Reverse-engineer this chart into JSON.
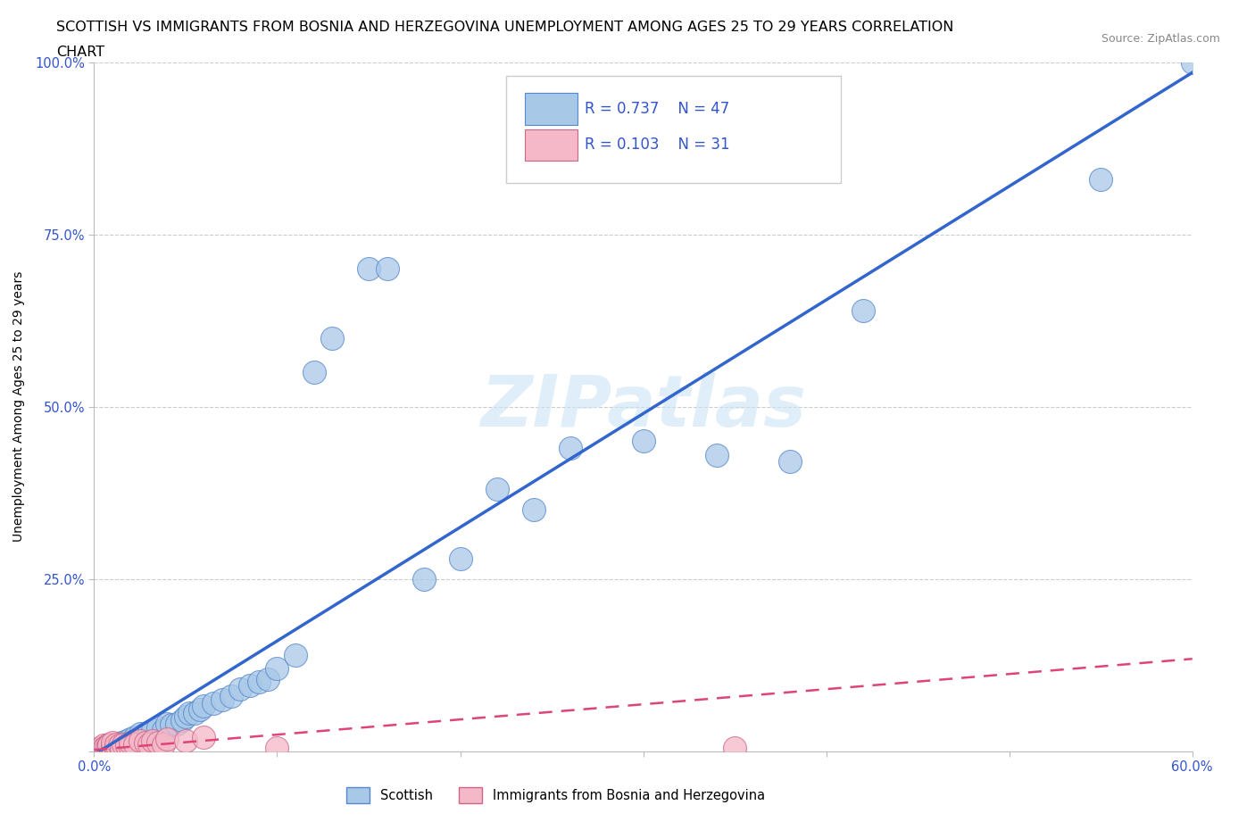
{
  "title_line1": "SCOTTISH VS IMMIGRANTS FROM BOSNIA AND HERZEGOVINA UNEMPLOYMENT AMONG AGES 25 TO 29 YEARS CORRELATION",
  "title_line2": "CHART",
  "source_text": "Source: ZipAtlas.com",
  "ylabel": "Unemployment Among Ages 25 to 29 years",
  "xlim": [
    0.0,
    0.6
  ],
  "ylim": [
    0.0,
    1.0
  ],
  "xticks": [
    0.0,
    0.1,
    0.2,
    0.3,
    0.4,
    0.5,
    0.6
  ],
  "xticklabels": [
    "0.0%",
    "",
    "",
    "",
    "",
    "",
    "60.0%"
  ],
  "yticks": [
    0.0,
    0.25,
    0.5,
    0.75,
    1.0
  ],
  "yticklabels": [
    "",
    "25.0%",
    "50.0%",
    "75.0%",
    "100.0%"
  ],
  "scottish_color": "#a8c8e8",
  "scottish_edge": "#5588cc",
  "bosnian_color": "#f5b8c8",
  "bosnian_edge": "#cc6688",
  "line_scottish_color": "#3366cc",
  "line_bosnian_color": "#dd4477",
  "legend_color": "#3355cc",
  "watermark": "ZIPatlas",
  "scottish_x": [
    0.005,
    0.008,
    0.01,
    0.012,
    0.015,
    0.018,
    0.02,
    0.022,
    0.025,
    0.028,
    0.03,
    0.032,
    0.035,
    0.038,
    0.04,
    0.042,
    0.045,
    0.048,
    0.05,
    0.052,
    0.055,
    0.058,
    0.06,
    0.065,
    0.07,
    0.075,
    0.08,
    0.085,
    0.09,
    0.095,
    0.1,
    0.11,
    0.12,
    0.13,
    0.15,
    0.16,
    0.18,
    0.2,
    0.22,
    0.24,
    0.26,
    0.3,
    0.34,
    0.38,
    0.42,
    0.55,
    0.6
  ],
  "scottish_y": [
    0.002,
    0.005,
    0.008,
    0.01,
    0.012,
    0.015,
    0.018,
    0.02,
    0.025,
    0.025,
    0.028,
    0.03,
    0.035,
    0.03,
    0.04,
    0.038,
    0.04,
    0.045,
    0.05,
    0.055,
    0.055,
    0.06,
    0.065,
    0.07,
    0.075,
    0.08,
    0.09,
    0.095,
    0.1,
    0.105,
    0.12,
    0.14,
    0.55,
    0.6,
    0.7,
    0.7,
    0.25,
    0.28,
    0.38,
    0.35,
    0.44,
    0.45,
    0.43,
    0.42,
    0.64,
    0.83,
    1.0
  ],
  "bosnian_x": [
    0.002,
    0.003,
    0.004,
    0.005,
    0.005,
    0.006,
    0.007,
    0.008,
    0.008,
    0.01,
    0.01,
    0.012,
    0.012,
    0.014,
    0.015,
    0.016,
    0.018,
    0.02,
    0.02,
    0.022,
    0.025,
    0.028,
    0.03,
    0.032,
    0.035,
    0.038,
    0.04,
    0.05,
    0.06,
    0.1,
    0.35
  ],
  "bosnian_y": [
    0.002,
    0.005,
    0.003,
    0.008,
    0.004,
    0.006,
    0.005,
    0.01,
    0.008,
    0.006,
    0.012,
    0.005,
    0.01,
    0.008,
    0.005,
    0.01,
    0.008,
    0.006,
    0.012,
    0.01,
    0.015,
    0.012,
    0.01,
    0.015,
    0.012,
    0.01,
    0.018,
    0.015,
    0.02,
    0.005,
    0.005
  ]
}
